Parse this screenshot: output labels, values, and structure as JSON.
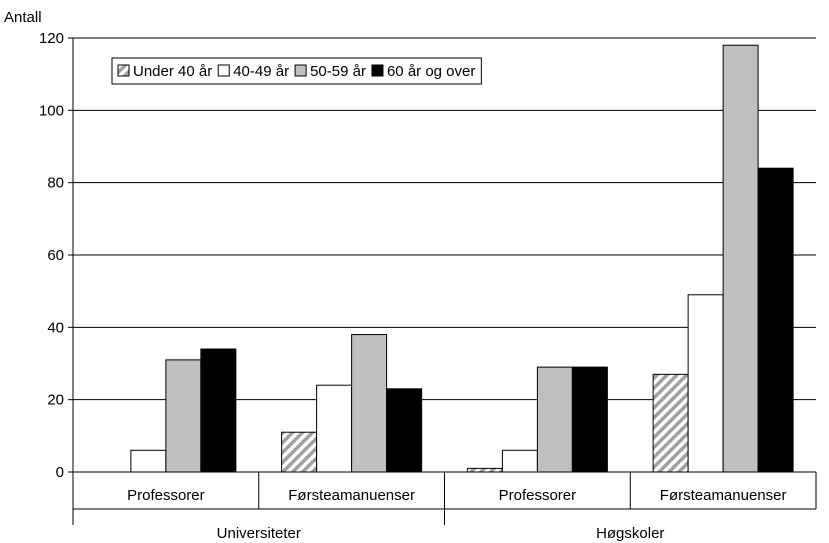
{
  "chart_data": {
    "type": "bar",
    "ylabel": "Antall",
    "ylim": [
      0,
      120
    ],
    "yticks": [
      0,
      20,
      40,
      60,
      80,
      100,
      120
    ],
    "grid": true,
    "legend_position": "top-left",
    "groups": [
      {
        "label": "Universiteter",
        "categories": [
          "Professorer",
          "Førsteamanuenser"
        ]
      },
      {
        "label": "Høgskoler",
        "categories": [
          "Professorer",
          "Førsteamanuenser"
        ]
      }
    ],
    "categories": [
      "Universiteter – Professorer",
      "Universiteter – Førsteamanuenser",
      "Høgskoler – Professorer",
      "Høgskoler – Førsteamanuenser"
    ],
    "series": [
      {
        "name": "Under 40 år",
        "values": [
          0,
          11,
          1,
          27
        ],
        "fill": "hatched",
        "color": "#a0a0a0"
      },
      {
        "name": "40-49 år",
        "values": [
          6,
          24,
          6,
          49
        ],
        "fill": "solid",
        "color": "#ffffff"
      },
      {
        "name": "50-59 år",
        "values": [
          31,
          38,
          29,
          118
        ],
        "fill": "solid",
        "color": "#c0c0c0"
      },
      {
        "name": "60 år og over",
        "values": [
          34,
          23,
          29,
          84
        ],
        "fill": "solid",
        "color": "#000000"
      }
    ]
  }
}
